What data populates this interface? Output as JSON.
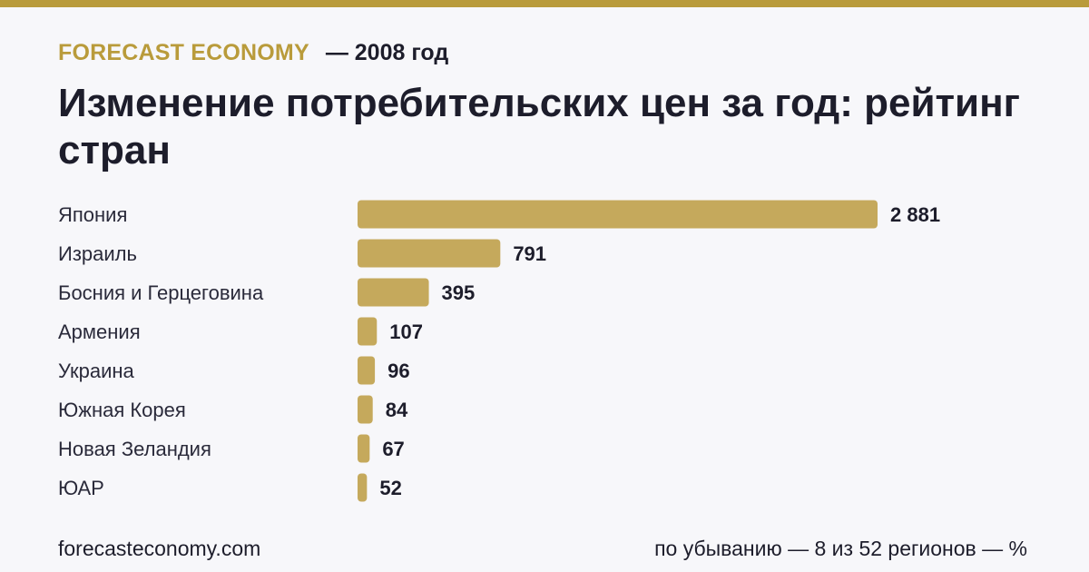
{
  "header": {
    "brand": "FORECAST ECONOMY",
    "period": "— 2008 год"
  },
  "title": "Изменение потребительских цен за год: рейтинг стран",
  "footer": {
    "site": "forecasteconomy.com",
    "note": "по убыванию — 8 из 52 регионов — %"
  },
  "colors": {
    "accent": "#b99b3b",
    "bar": "#c5a95c",
    "text": "#1d1d2b",
    "background": "#f7f7fa"
  },
  "chart_data": {
    "type": "bar",
    "orientation": "horizontal",
    "categories": [
      "Япония",
      "Израиль",
      "Босния и Герцеговина",
      "Армения",
      "Украина",
      "Южная Корея",
      "Новая Зеландия",
      "ЮАР"
    ],
    "values": [
      2881,
      791,
      395,
      107,
      96,
      84,
      67,
      52
    ],
    "value_labels": [
      "2 881",
      "791",
      "395",
      "107",
      "96",
      "84",
      "67",
      "52"
    ],
    "title": "Изменение потребительских цен за год: рейтинг стран",
    "xlabel": "",
    "ylabel": "",
    "grid": false,
    "legend": "none"
  }
}
